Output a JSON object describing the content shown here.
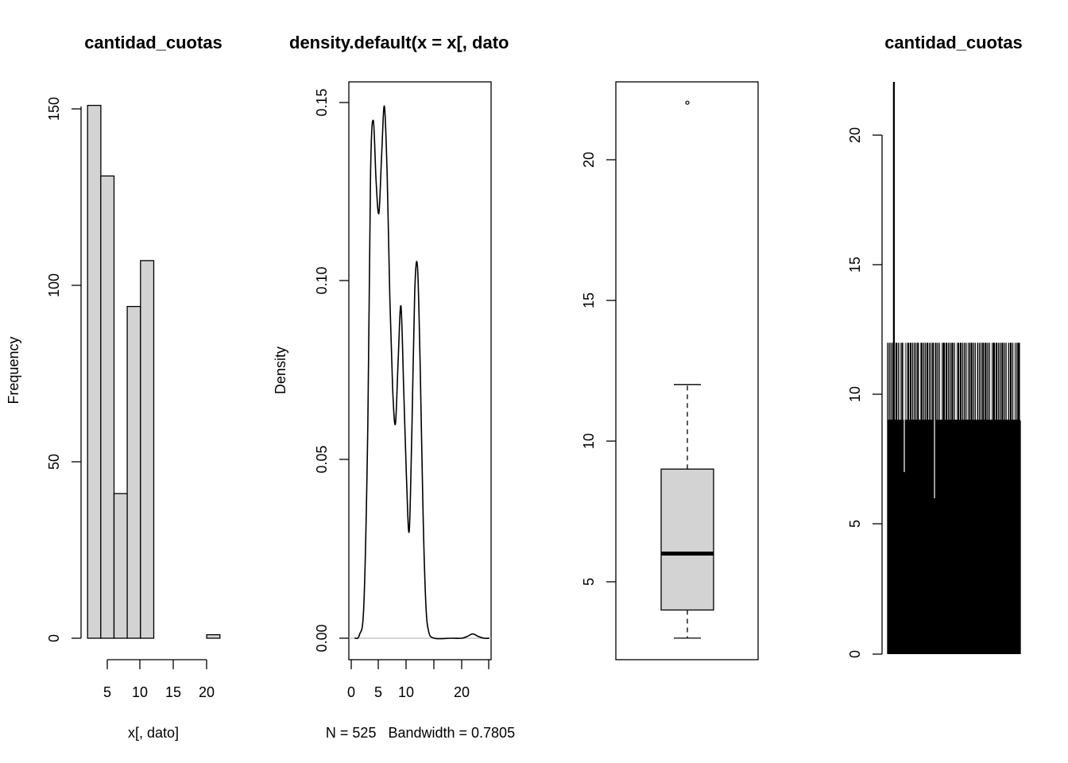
{
  "colors": {
    "bar_fill": "#d3d3d3",
    "ink": "#000000",
    "baseline": "#bebebe"
  },
  "chart_data": [
    {
      "type": "bar",
      "subtype": "histogram",
      "title": "cantidad_cuotas",
      "xlabel": "x[, dato]",
      "ylabel": "Frequency",
      "bins": [
        [
          2,
          4
        ],
        [
          4,
          6
        ],
        [
          6,
          8
        ],
        [
          8,
          10
        ],
        [
          10,
          12
        ],
        [
          12,
          14
        ],
        [
          14,
          16
        ],
        [
          16,
          18
        ],
        [
          18,
          20
        ],
        [
          20,
          22
        ]
      ],
      "values": [
        151,
        131,
        41,
        94,
        107,
        0,
        0,
        0,
        0,
        1
      ],
      "xlim": [
        2,
        22
      ],
      "ylim": [
        0,
        151
      ],
      "x_ticks": [
        "5",
        "10",
        "15",
        "20"
      ],
      "y_ticks": [
        "0",
        "50",
        "100",
        "150"
      ]
    },
    {
      "type": "line",
      "title": "density.default(x = x[, dato",
      "xlabel": "N = 525   Bandwidth = 0.7805",
      "ylabel": "Density",
      "x": [
        0.6,
        1.5,
        2.3,
        3.0,
        3.5,
        4.0,
        4.5,
        5.0,
        5.5,
        6.0,
        6.5,
        7.0,
        7.5,
        8.0,
        8.5,
        9.0,
        9.5,
        10.0,
        10.5,
        11.0,
        11.5,
        12.0,
        12.5,
        13.0,
        13.5,
        14.0,
        15.0,
        18.0,
        20.0,
        21.0,
        22.0,
        23.0,
        24.0,
        25.0
      ],
      "y": [
        0.0,
        0.001,
        0.01,
        0.06,
        0.13,
        0.145,
        0.128,
        0.119,
        0.135,
        0.149,
        0.13,
        0.095,
        0.07,
        0.06,
        0.078,
        0.093,
        0.07,
        0.045,
        0.03,
        0.06,
        0.097,
        0.104,
        0.075,
        0.035,
        0.01,
        0.002,
        0.0,
        0.0,
        0.0,
        0.0005,
        0.0012,
        0.0005,
        0.0,
        0.0
      ],
      "xlim": [
        -0.2,
        25.4
      ],
      "ylim": [
        -0.0058,
        0.1568
      ],
      "x_ticks": [
        "0",
        "5",
        "10",
        "20"
      ],
      "y_ticks": [
        "0.00",
        "0.05",
        "0.10",
        "0.15"
      ]
    },
    {
      "type": "box",
      "title": "",
      "min": 3,
      "q1": 4,
      "median": 6,
      "q3": 9,
      "whisker_high": 12,
      "outliers": [
        22
      ],
      "ylim": [
        2.25,
        22.75
      ],
      "y_ticks": [
        "5",
        "10",
        "15",
        "20"
      ]
    },
    {
      "type": "bar",
      "subtype": "index-plot",
      "title": "cantidad_cuotas",
      "note": "525 observations drawn as vertical lines; values 3-12 with one outlier at 22",
      "values_sample": [
        12,
        9,
        12,
        7,
        12,
        9,
        12,
        22,
        12,
        9,
        12,
        12,
        9,
        12,
        7,
        12,
        9,
        12,
        12,
        9,
        12,
        6,
        12,
        9,
        12,
        12,
        9,
        12,
        12,
        9
      ],
      "ylim": [
        0,
        22
      ],
      "y_ticks": [
        "0",
        "5",
        "10",
        "15",
        "20"
      ]
    }
  ]
}
